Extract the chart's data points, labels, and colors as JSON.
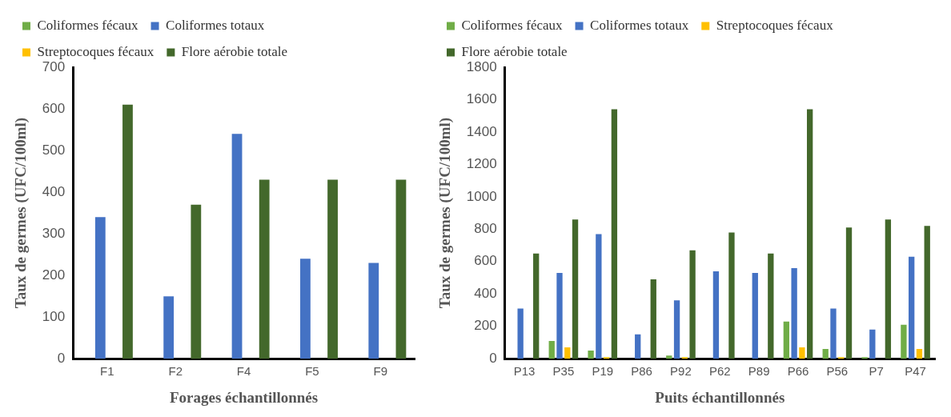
{
  "chart_data": [
    {
      "type": "bar",
      "xlabel": "Forages échantillonnés",
      "ylabel": "Taux de germes (UFC/100ml)",
      "categories": [
        "F1",
        "F2",
        "F4",
        "F5",
        "F9"
      ],
      "series": [
        {
          "name": "Coliformes fécaux",
          "color": "#70ad47",
          "values": [
            0,
            0,
            0,
            0,
            0
          ]
        },
        {
          "name": "Coliformes totaux",
          "color": "#4472c4",
          "values": [
            340,
            150,
            540,
            240,
            230
          ]
        },
        {
          "name": "Streptocoques fécaux",
          "color": "#ffc000",
          "values": [
            0,
            0,
            0,
            0,
            0
          ]
        },
        {
          "name": "Flore aérobie totale",
          "color": "#43682b",
          "values": [
            610,
            370,
            430,
            430,
            430
          ]
        }
      ],
      "ylim": [
        0,
        700
      ],
      "yticks": [
        0,
        100,
        200,
        300,
        400,
        500,
        600,
        700
      ],
      "grid": false,
      "legend": "top"
    },
    {
      "type": "bar",
      "xlabel": "Puits échantillonnés",
      "ylabel": "Taux de germes (UFC/100ml)",
      "categories": [
        "P13",
        "P35",
        "P19",
        "P86",
        "P92",
        "P62",
        "P89",
        "P66",
        "P56",
        "P7",
        "P47"
      ],
      "series": [
        {
          "name": "Coliformes fécaux",
          "color": "#70ad47",
          "values": [
            0,
            110,
            50,
            0,
            20,
            0,
            0,
            230,
            60,
            10,
            210
          ]
        },
        {
          "name": "Coliformes totaux",
          "color": "#4472c4",
          "values": [
            310,
            530,
            770,
            150,
            360,
            540,
            530,
            560,
            310,
            180,
            630
          ]
        },
        {
          "name": "Streptocoques fécaux",
          "color": "#ffc000",
          "values": [
            0,
            70,
            10,
            0,
            10,
            0,
            0,
            70,
            10,
            0,
            60
          ]
        },
        {
          "name": "Flore aérobie totale",
          "color": "#43682b",
          "values": [
            650,
            860,
            1540,
            490,
            670,
            780,
            650,
            1540,
            810,
            860,
            820
          ]
        }
      ],
      "ylim": [
        0,
        1800
      ],
      "yticks": [
        0,
        200,
        400,
        600,
        800,
        1000,
        1200,
        1400,
        1600,
        1800
      ],
      "grid": false,
      "legend": "top"
    }
  ]
}
